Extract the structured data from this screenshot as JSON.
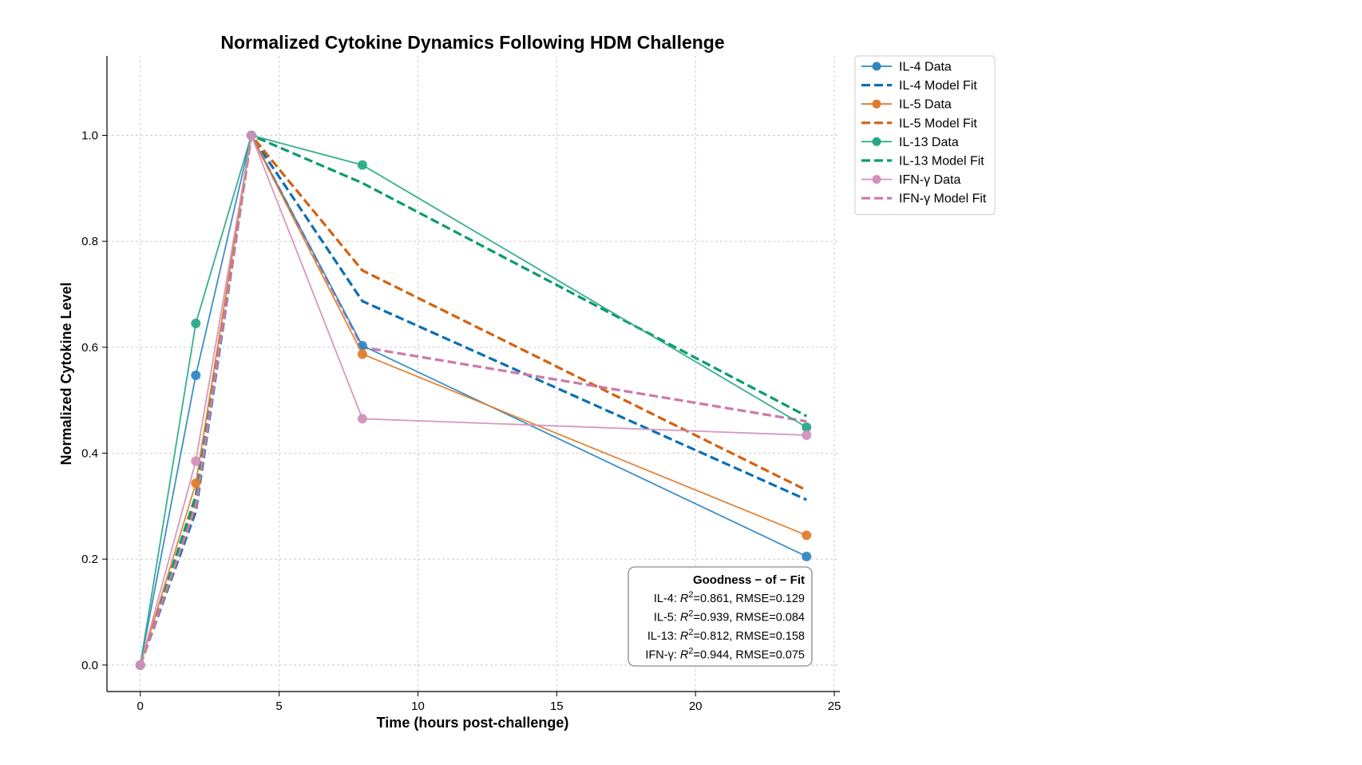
{
  "chart_data": {
    "type": "line",
    "title": "Normalized Cytokine Dynamics Following HDM Challenge",
    "xlabel": "Time (hours post-challenge)",
    "ylabel": "Normalized Cytokine Level",
    "xlim": [
      -1.2,
      25.2
    ],
    "ylim": [
      -0.05,
      1.15
    ],
    "xticks": [
      0,
      5,
      10,
      15,
      20,
      25
    ],
    "yticks": [
      0.0,
      0.2,
      0.4,
      0.6,
      0.8,
      1.0
    ],
    "xtick_labels": [
      "0",
      "5",
      "10",
      "15",
      "20",
      "25"
    ],
    "ytick_labels": [
      "0.0",
      "0.2",
      "0.4",
      "0.6",
      "0.8",
      "1.0"
    ],
    "grid": true,
    "legend_position": "outside-top-right",
    "x": [
      0,
      2,
      4,
      8,
      24
    ],
    "series": [
      {
        "name": "IL-4 Data",
        "kind": "data",
        "color": "#2e86c1",
        "values": [
          0.0,
          0.547,
          1.0,
          0.603,
          0.205
        ]
      },
      {
        "name": "IL-4 Model Fit",
        "kind": "fit",
        "color": "#0a6fb3",
        "values": [
          0.0,
          0.29,
          1.0,
          0.687,
          0.312
        ]
      },
      {
        "name": "IL-5 Data",
        "kind": "data",
        "color": "#e07b28",
        "values": [
          0.0,
          0.343,
          1.0,
          0.587,
          0.245
        ]
      },
      {
        "name": "IL-5 Model Fit",
        "kind": "fit",
        "color": "#d5600f",
        "values": [
          0.0,
          0.31,
          1.0,
          0.745,
          0.33
        ]
      },
      {
        "name": "IL-13 Data",
        "kind": "data",
        "color": "#26a886",
        "values": [
          0.0,
          0.645,
          1.0,
          0.944,
          0.449
        ]
      },
      {
        "name": "IL-13 Model Fit",
        "kind": "fit",
        "color": "#0b9a6e",
        "values": [
          0.0,
          0.32,
          1.0,
          0.91,
          0.47
        ]
      },
      {
        "name": "IFN-γ Data",
        "kind": "data",
        "color": "#d38fbb",
        "values": [
          0.0,
          0.385,
          1.0,
          0.465,
          0.434
        ]
      },
      {
        "name": "IFN-γ Model Fit",
        "kind": "fit",
        "color": "#cc79a7",
        "values": [
          0.0,
          0.3,
          1.0,
          0.6,
          0.46
        ]
      }
    ],
    "annotation": {
      "title": "Goodness − of − Fit",
      "lines": [
        {
          "label": "IL-4: ",
          "r2_symbol": "R",
          "r2_sup": "2",
          "rest": "=0.861, RMSE=0.129"
        },
        {
          "label": "IL-5: ",
          "r2_symbol": "R",
          "r2_sup": "2",
          "rest": "=0.939, RMSE=0.084"
        },
        {
          "label": "IL-13: ",
          "r2_symbol": "R",
          "r2_sup": "2",
          "rest": "=0.812, RMSE=0.158"
        },
        {
          "label": "IFN-γ: ",
          "r2_symbol": "R",
          "r2_sup": "2",
          "rest": "=0.944, RMSE=0.075"
        }
      ]
    }
  }
}
